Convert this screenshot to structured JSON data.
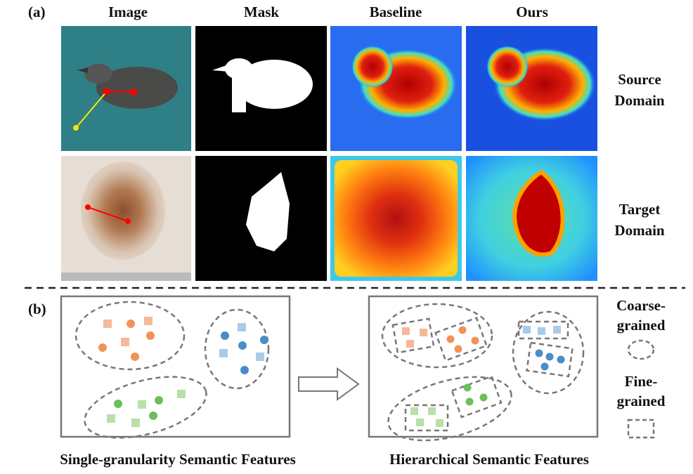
{
  "panel_a": {
    "label": "(a)",
    "columns": [
      "Image",
      "Mask",
      "Baseline",
      "Ours"
    ],
    "rows": [
      {
        "label": [
          "Source",
          "Domain"
        ]
      },
      {
        "label": [
          "Target",
          "Domain"
        ]
      }
    ]
  },
  "panel_b": {
    "label": "(b)",
    "left_caption": "Single-granularity Semantic Features",
    "right_caption": "Hierarchical Semantic Features",
    "legend": [
      {
        "label": [
          "Coarse-",
          "grained"
        ]
      },
      {
        "label": [
          "Fine-",
          "grained"
        ]
      }
    ]
  }
}
